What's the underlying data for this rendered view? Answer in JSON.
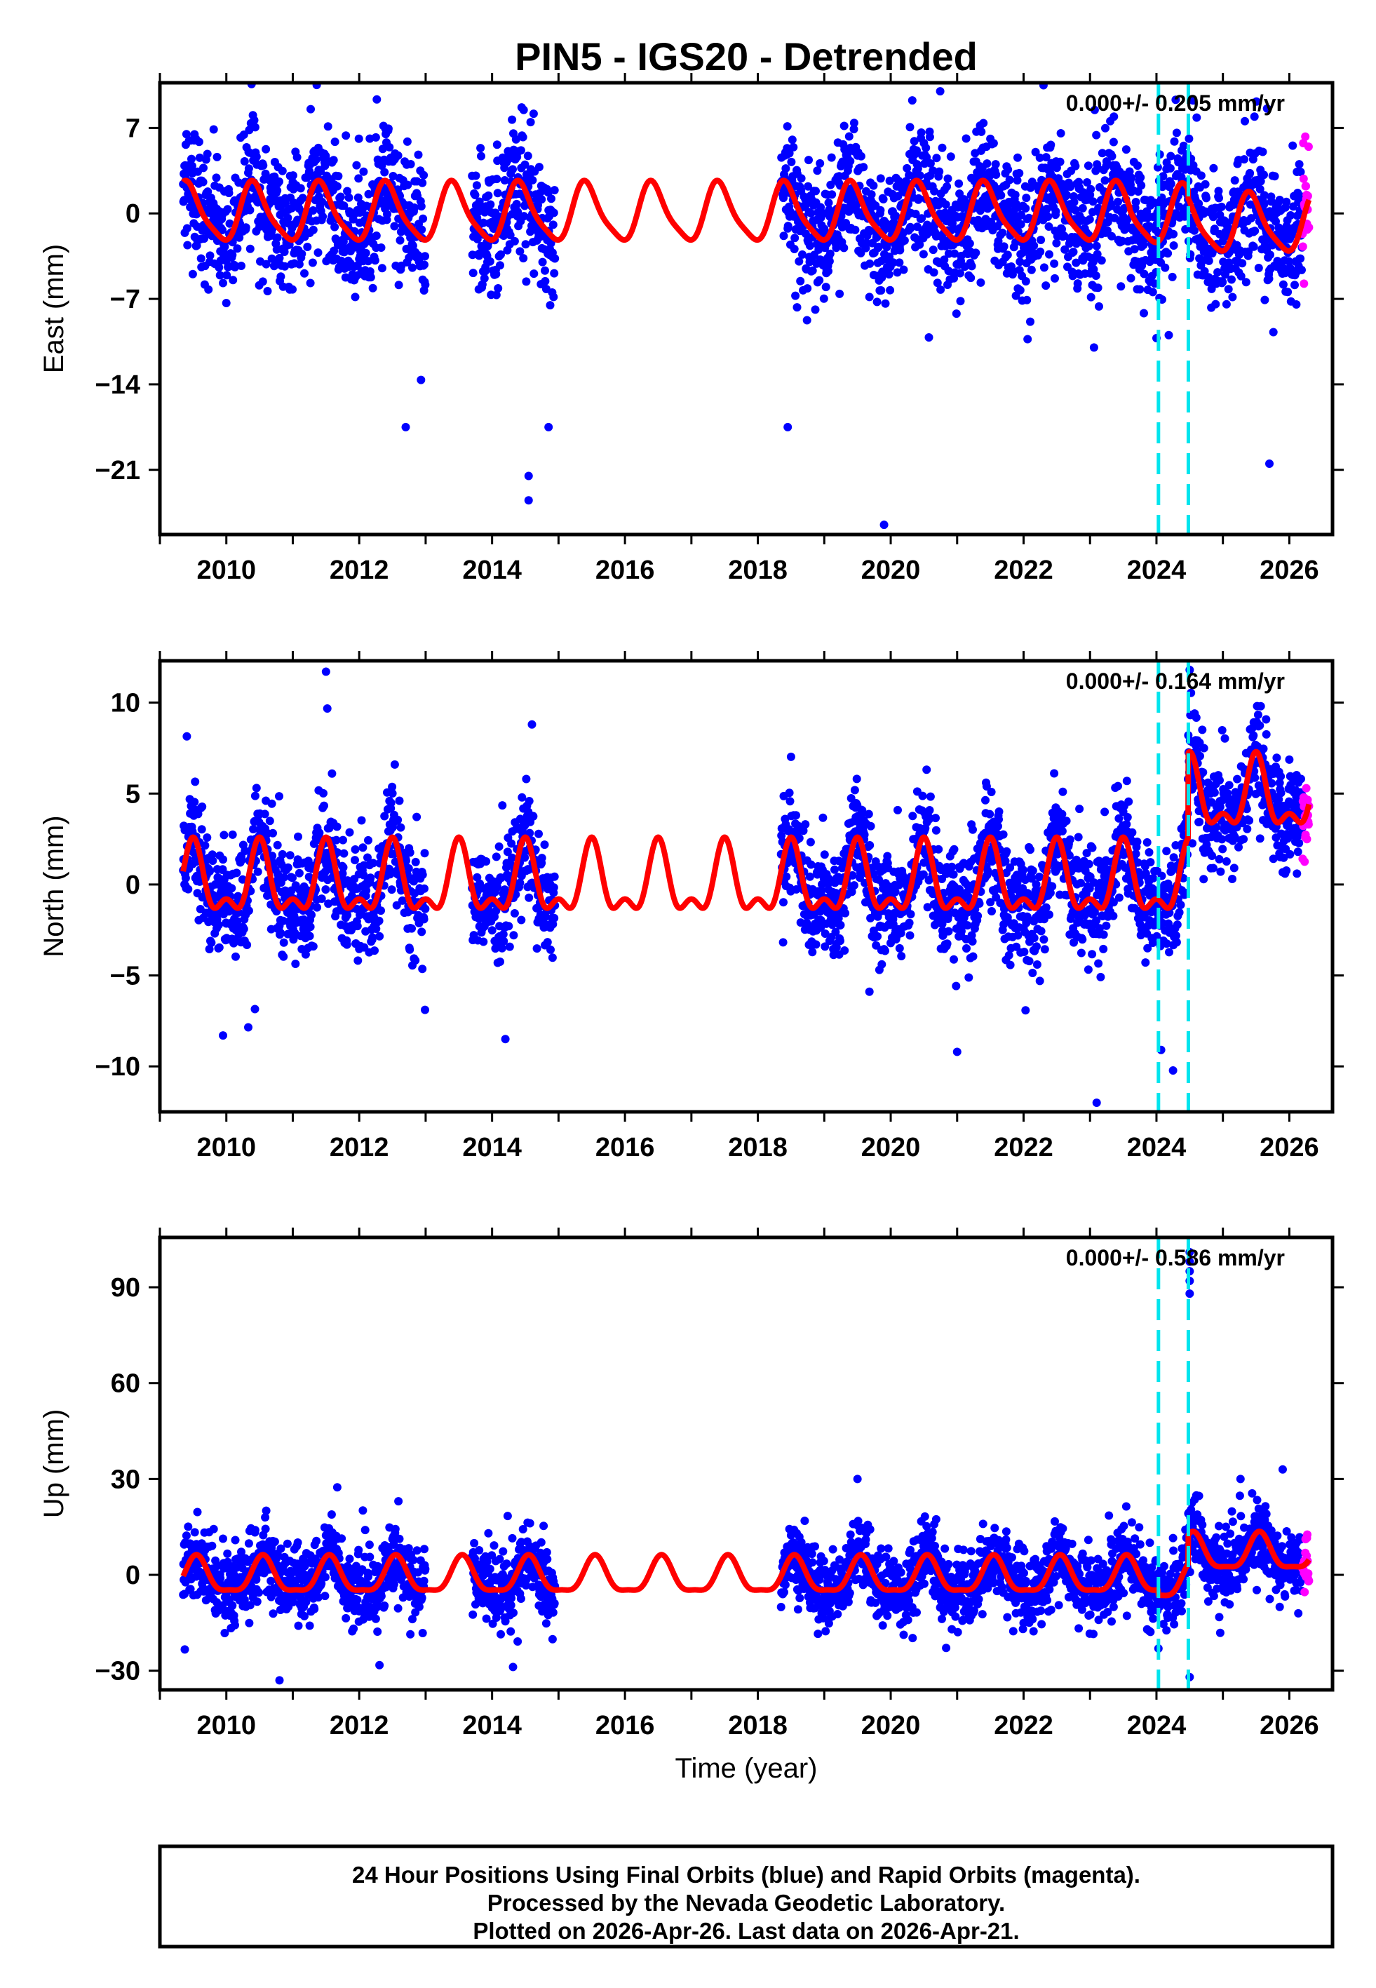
{
  "chart_data": {
    "type": "scatter",
    "title": "PIN5 - IGS20 - Detrended",
    "xlabel": "Time (year)",
    "xlim": [
      2009.0,
      2026.65
    ],
    "x_ticks": [
      2010,
      2012,
      2014,
      2016,
      2018,
      2020,
      2022,
      2024,
      2026
    ],
    "x_tick_labels": [
      "2010",
      "2012",
      "2014",
      "2016",
      "2018",
      "2020",
      "2022",
      "2024",
      "2026"
    ],
    "data_segments": [
      [
        2009.35,
        2013.0
      ],
      [
        2013.7,
        2014.95
      ],
      [
        2018.35,
        2026.3
      ]
    ],
    "rapid_orbit_segment": [
      2026.2,
      2026.3
    ],
    "model_range": [
      2009.35,
      2026.3
    ],
    "event_lines": [
      2024.03,
      2024.48
    ],
    "colors": {
      "final_orbits": "#0000ff",
      "rapid_orbits": "#ff00ff",
      "model": "#ff0000",
      "events": "#00e5ee"
    },
    "panels": [
      {
        "id": "east",
        "ylabel": "East (mm)",
        "ylim": [
          -26.3,
          10.7
        ],
        "y_ticks": [
          7,
          0,
          -7,
          -14,
          -21
        ],
        "y_tick_labels": [
          "7",
          "0",
          "−7",
          "−14",
          "−21"
        ],
        "velocity_label": "0.000+/- 0.205 mm/yr",
        "model": {
          "annual_amp": 2.3,
          "annual_peak": 0.42,
          "semiannual_amp": 0.5,
          "semiannual_peak": 0.35,
          "offsets": [
            [
              2009.0,
              0.0
            ],
            [
              2023.6,
              -0.2
            ],
            [
              2024.48,
              -0.9
            ]
          ]
        },
        "noise_sigma": 2.6,
        "outliers": [
          [
            2014.55,
            -21.5
          ],
          [
            2014.55,
            -23.5
          ],
          [
            2019.9,
            -25.5
          ],
          [
            2014.85,
            -17.5
          ],
          [
            2025.7,
            -20.5
          ],
          [
            2022.3,
            10.5
          ],
          [
            2012.7,
            -17.5
          ],
          [
            2018.45,
            -17.5
          ]
        ]
      },
      {
        "id": "north",
        "ylabel": "North (mm)",
        "ylim": [
          -12.5,
          12.3
        ],
        "y_ticks": [
          10,
          5,
          0,
          -5,
          -10
        ],
        "y_tick_labels": [
          "10",
          "5",
          "0",
          "−5",
          "−10"
        ],
        "velocity_label": "0.000+/- 0.164 mm/yr",
        "model": {
          "annual_amp": 1.7,
          "annual_peak": 0.5,
          "semiannual_amp": 0.9,
          "semiannual_peak": 0.5,
          "offsets": [
            [
              2009.0,
              0.0
            ],
            [
              2024.03,
              0.0
            ],
            [
              2024.48,
              4.7
            ]
          ]
        },
        "noise_sigma": 1.5,
        "outliers": [
          [
            2011.5,
            11.7
          ],
          [
            2023.1,
            -12.0
          ],
          [
            2024.5,
            11.8
          ],
          [
            2009.95,
            -8.3
          ],
          [
            2014.2,
            -8.5
          ],
          [
            2021.0,
            -9.2
          ],
          [
            2014.6,
            8.8
          ]
        ]
      },
      {
        "id": "up",
        "ylabel": "Up (mm)",
        "ylim": [
          -36,
          105.6
        ],
        "y_ticks": [
          90,
          60,
          30,
          0,
          -30
        ],
        "y_tick_labels": [
          "90",
          "60",
          "30",
          "0",
          "−30"
        ],
        "velocity_label": "0.000+/- 0.586 mm/yr",
        "model": {
          "annual_amp": 5.5,
          "annual_peak": 0.55,
          "semiannual_amp": 1.6,
          "semiannual_peak": 0.55,
          "offsets": [
            [
              2009.0,
              -0.8
            ],
            [
              2024.03,
              -2.5
            ],
            [
              2024.48,
              6.5
            ]
          ]
        },
        "noise_sigma": 5.5,
        "outliers": [
          [
            2024.5,
            88
          ],
          [
            2024.5,
            92
          ],
          [
            2024.5,
            95
          ],
          [
            2024.5,
            98
          ],
          [
            2024.5,
            101
          ],
          [
            2024.5,
            -32
          ],
          [
            2025.9,
            33
          ],
          [
            2010.8,
            -33
          ],
          [
            2019.5,
            30
          ]
        ]
      }
    ]
  },
  "footer": {
    "line1": "24 Hour Positions Using Final Orbits (blue) and Rapid Orbits (magenta).",
    "line2": "Processed by the Nevada Geodetic Laboratory.",
    "line3": "Plotted on 2026-Apr-26. Last data on 2026-Apr-21."
  }
}
